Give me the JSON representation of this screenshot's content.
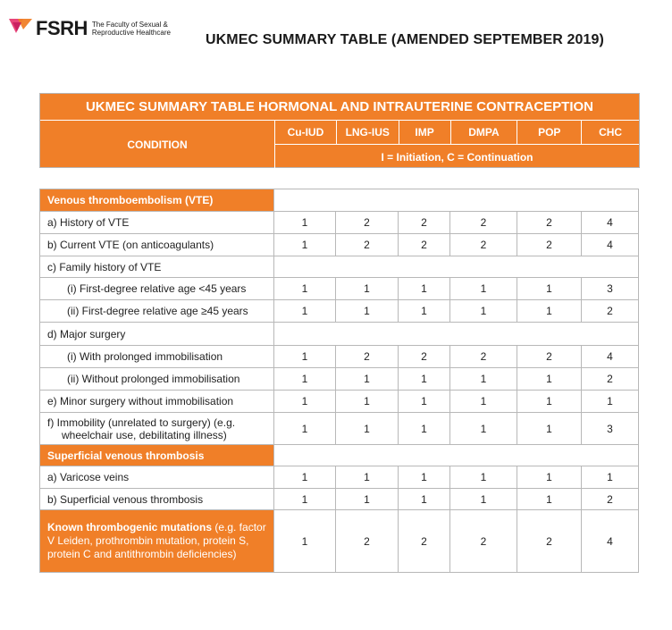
{
  "header": {
    "brand": "FSRH",
    "tagline_line1": "The Faculty of Sexual &",
    "tagline_line2": "Reproductive Healthcare",
    "page_title": "UKMEC SUMMARY TABLE (AMENDED SEPTEMBER 2019)"
  },
  "table_header": {
    "title": "UKMEC SUMMARY TABLE HORMONAL AND INTRAUTERINE CONTRACEPTION",
    "condition_label": "CONDITION",
    "methods": [
      "Cu-IUD",
      "LNG-IUS",
      "IMP",
      "DMPA",
      "POP",
      "CHC"
    ],
    "legend": "I = Initiation, C = Continuation"
  },
  "rows": [
    {
      "type": "section",
      "label": "Venous thromboembolism (VTE)",
      "values": null
    },
    {
      "type": "item",
      "label": "a)  History of VTE",
      "values": [
        "1",
        "2",
        "2",
        "2",
        "2",
        "4"
      ]
    },
    {
      "type": "item",
      "label": "b)  Current VTE (on anticoagulants)",
      "values": [
        "1",
        "2",
        "2",
        "2",
        "2",
        "4"
      ]
    },
    {
      "type": "item",
      "label": "c)  Family history of VTE",
      "values": null
    },
    {
      "type": "sub",
      "label": "(i) First-degree relative age <45 years",
      "values": [
        "1",
        "1",
        "1",
        "1",
        "1",
        "3"
      ]
    },
    {
      "type": "sub",
      "label": "(ii) First-degree relative age ≥45 years",
      "values": [
        "1",
        "1",
        "1",
        "1",
        "1",
        "2"
      ]
    },
    {
      "type": "item",
      "label": "d)  Major surgery",
      "values": null
    },
    {
      "type": "sub",
      "label": "(i) With prolonged immobilisation",
      "values": [
        "1",
        "2",
        "2",
        "2",
        "2",
        "4"
      ]
    },
    {
      "type": "sub",
      "label": "(ii) Without prolonged immobilisation",
      "values": [
        "1",
        "1",
        "1",
        "1",
        "1",
        "2"
      ]
    },
    {
      "type": "item",
      "label": "e)  Minor surgery without immobilisation",
      "values": [
        "1",
        "1",
        "1",
        "1",
        "1",
        "1"
      ]
    },
    {
      "type": "item2",
      "label_line1": "f)  Immobility (unrelated to surgery) (e.g.",
      "label_line2": "wheelchair use, debilitating illness)",
      "values": [
        "1",
        "1",
        "1",
        "1",
        "1",
        "3"
      ]
    },
    {
      "type": "section",
      "label": "Superficial venous thrombosis",
      "values": null
    },
    {
      "type": "item",
      "label": "a)  Varicose veins",
      "values": [
        "1",
        "1",
        "1",
        "1",
        "1",
        "1"
      ]
    },
    {
      "type": "item",
      "label": "b)  Superficial venous thrombosis",
      "values": [
        "1",
        "1",
        "1",
        "1",
        "1",
        "2"
      ]
    },
    {
      "type": "section-multi",
      "label_bold": "Known thrombogenic mutations",
      "label_rest": " (e.g. factor V Leiden, prothrombin mutation, protein S, protein C and antithrombin deficiencies)",
      "values": [
        "1",
        "2",
        "2",
        "2",
        "2",
        "4"
      ]
    }
  ],
  "colors": {
    "accent": "#f07f28",
    "border": "#b8b8b8"
  }
}
